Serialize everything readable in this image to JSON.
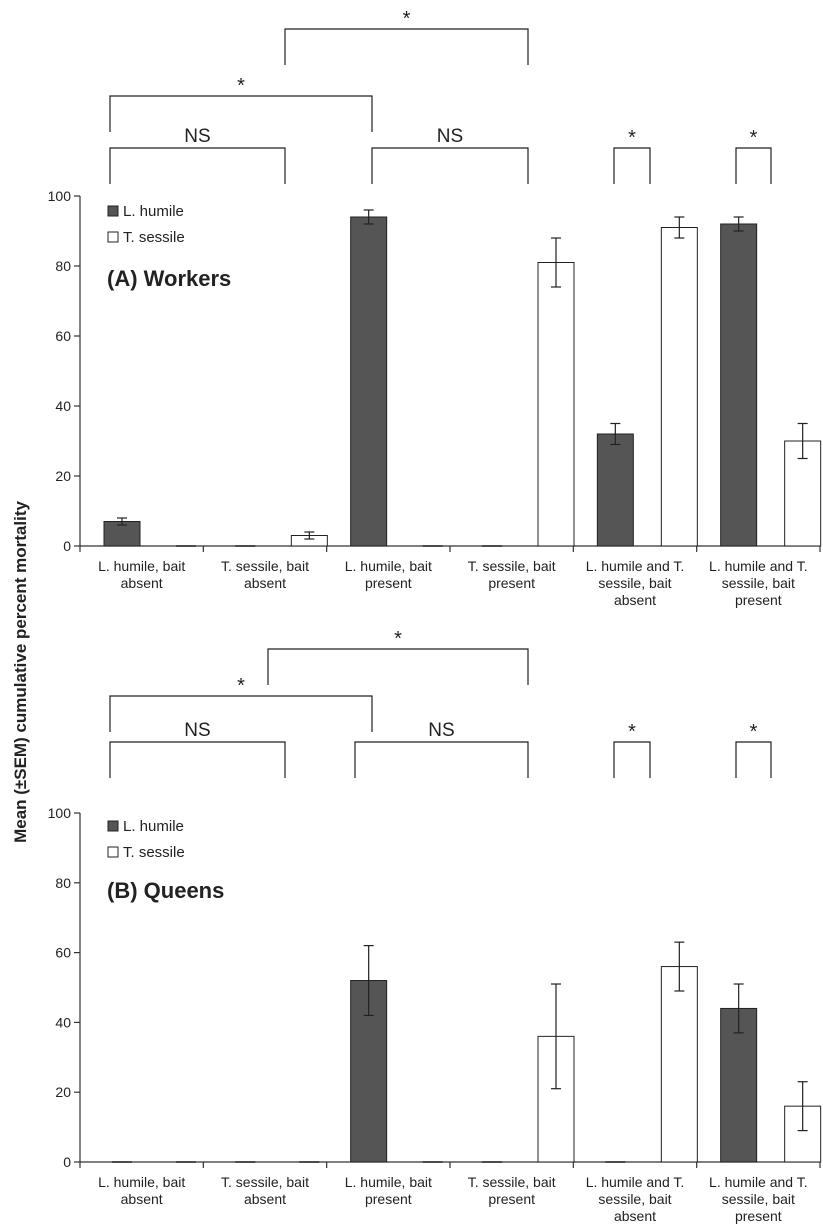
{
  "figure": {
    "ylabel": "Mean (±SEM) cumulative percent mortality"
  },
  "chart_data": [
    {
      "type": "bar",
      "title": "(A) Workers",
      "ylim": [
        0,
        100
      ],
      "yticks": [
        0,
        20,
        40,
        60,
        80,
        100
      ],
      "categories": [
        [
          "L. humile, bait",
          "absent"
        ],
        [
          "T. sessile, bait",
          "absent"
        ],
        [
          "L. humile, bait",
          "present"
        ],
        [
          "T. sessile, bait",
          "present"
        ],
        [
          "L. humile and T.",
          "sessile, bait",
          "absent"
        ],
        [
          "L. humile and T.",
          "sessile, bait",
          "present"
        ]
      ],
      "series": [
        {
          "name": "L. humile",
          "color": "#555555",
          "values": [
            7,
            0,
            94,
            0,
            32,
            92
          ],
          "sem": [
            1,
            0,
            2,
            0,
            3,
            2
          ]
        },
        {
          "name": "T. sessile",
          "color": "#ffffff",
          "values": [
            0,
            3,
            0,
            81,
            91,
            30
          ],
          "sem": [
            0,
            1,
            0,
            7,
            3,
            5
          ]
        }
      ],
      "brackets": [
        {
          "label": "*",
          "from": 1,
          "to": 3
        },
        {
          "label": "*",
          "from": 0,
          "to": 2
        },
        {
          "label": "NS",
          "from": 0,
          "to": 1
        },
        {
          "label": "NS",
          "from": 2,
          "to": 3
        },
        {
          "label": "*",
          "from": 4,
          "to": 4
        },
        {
          "label": "*",
          "from": 5,
          "to": 5
        }
      ]
    },
    {
      "type": "bar",
      "title": "(B) Queens",
      "ylim": [
        0,
        100
      ],
      "yticks": [
        0,
        20,
        40,
        60,
        80,
        100
      ],
      "categories": [
        [
          "L. humile, bait",
          "absent"
        ],
        [
          "T. sessile, bait",
          "absent"
        ],
        [
          "L. humile, bait",
          "present"
        ],
        [
          "T. sessile, bait",
          "present"
        ],
        [
          "L. humile and T.",
          "sessile, bait",
          "absent"
        ],
        [
          "L. humile and T.",
          "sessile, bait",
          "present"
        ]
      ],
      "series": [
        {
          "name": "L. humile",
          "color": "#555555",
          "values": [
            0,
            0,
            52,
            0,
            0,
            44
          ],
          "sem": [
            0,
            0,
            10,
            0,
            0,
            7
          ]
        },
        {
          "name": "T. sessile",
          "color": "#ffffff",
          "values": [
            0,
            0,
            0,
            36,
            56,
            16
          ],
          "sem": [
            0,
            0,
            0,
            15,
            7,
            7
          ]
        }
      ],
      "brackets": [
        {
          "label": "*",
          "from": 1,
          "to": 3
        },
        {
          "label": "*",
          "from": 0,
          "to": 2
        },
        {
          "label": "NS",
          "from": 0,
          "to": 1
        },
        {
          "label": "NS",
          "from": 2,
          "to": 3
        },
        {
          "label": "*",
          "from": 4,
          "to": 4
        },
        {
          "label": "*",
          "from": 5,
          "to": 5
        }
      ]
    }
  ]
}
